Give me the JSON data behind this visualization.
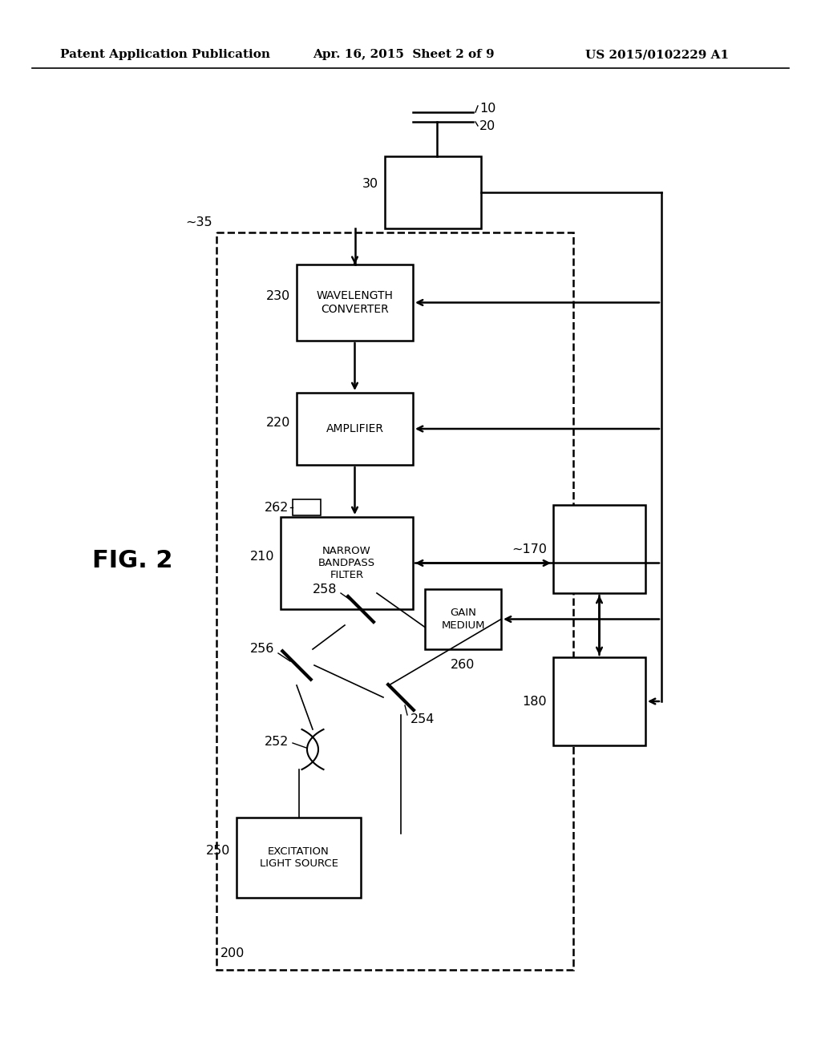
{
  "bg_color": "#ffffff",
  "line_color": "#000000",
  "header_left": "Patent Application Publication",
  "header_center": "Apr. 16, 2015  Sheet 2 of 9",
  "header_right": "US 2015/0102229 A1",
  "fig_label": "FIG. 2"
}
